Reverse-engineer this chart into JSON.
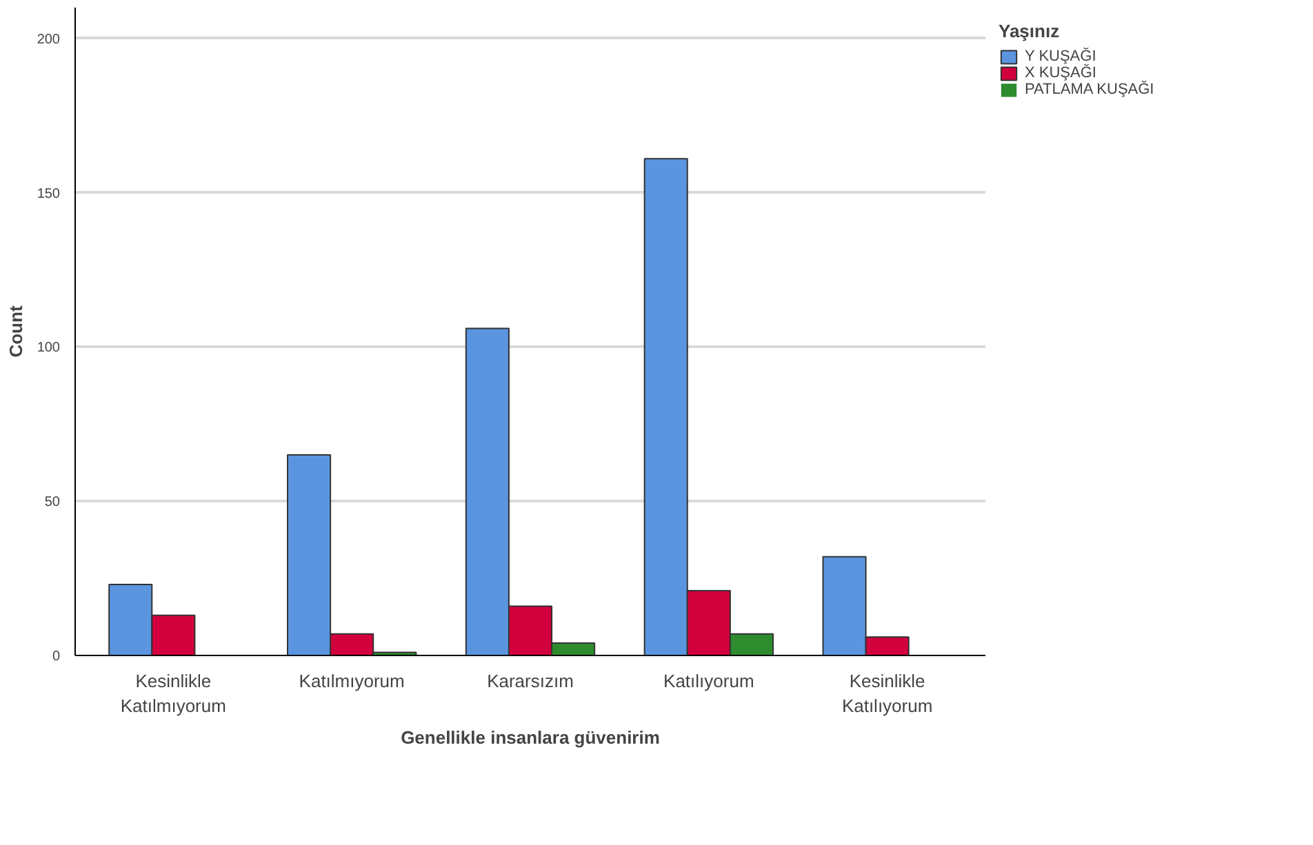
{
  "chart_data": {
    "type": "bar",
    "xlabel": "Genellikle insanlara güvenirim",
    "ylabel": "Count",
    "legend_title": "Yaşınız",
    "categories": [
      "Kesinlikle Katılmıyorum",
      "Katılmıyorum",
      "Kararsızım",
      "Katılıyorum",
      "Kesinlikle Katılıyorum"
    ],
    "series": [
      {
        "name": "Y KUŞAĞI",
        "color": "#5b95e0",
        "values": [
          23,
          65,
          106,
          161,
          32
        ]
      },
      {
        "name": "X KUŞAĞI",
        "color": "#d2003c",
        "values": [
          13,
          7,
          16,
          21,
          6
        ]
      },
      {
        "name": "PATLAMA KUŞAĞI",
        "color": "#2e8b2e",
        "values": [
          0,
          1,
          4,
          7,
          0
        ]
      }
    ],
    "ylim": [
      0,
      210
    ],
    "yticks": [
      0,
      50,
      100,
      150,
      200
    ],
    "grid": "y",
    "legend": "top right"
  }
}
